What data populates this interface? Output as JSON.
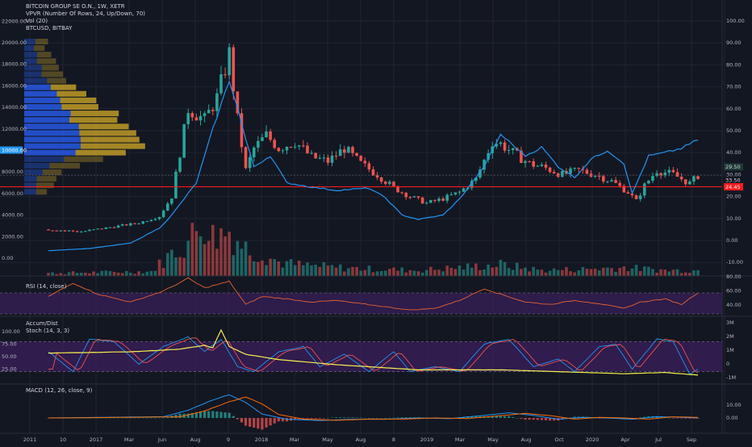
{
  "colors": {
    "background": "#131722",
    "grid": "#1f2430",
    "up": "#26a69a",
    "down": "#ef5350",
    "btc_line": "#2196f3",
    "hline": "#ff1a1a",
    "vpvr_blue": "#2962ff",
    "vpvr_gold": "#c9a227",
    "rsi_line": "#e8622c",
    "rsi_band": "#3b1f5c",
    "adline": "#f6ef4f",
    "stoch_k": "#2196f3",
    "stoch_d": "#ef5350",
    "macd_line": "#2196f3",
    "signal_line": "#ff6d00"
  },
  "legend": {
    "title": "BITCOIN GROUP SE O.N., 1W, XETR",
    "vpvr": "VPVR (Number Of Rows, 24, Up/Down, 70)",
    "vol": "Vol (20)",
    "btc": "BTCUSD, BITBAY",
    "rsi": "RSI (14, close)",
    "accum": "Accum/Dist",
    "stoch": "Stoch (14, 3, 3)",
    "macd": "MACD (12, 26, close, 9)"
  },
  "price_axis": {
    "left_ticks": [
      "22000.00",
      "20000.00",
      "18000.00",
      "16000.00",
      "14000.00",
      "12000.00",
      "10000.00",
      "8000.00",
      "6000.00",
      "4000.00",
      "2000.00",
      "0.00"
    ],
    "right_ticks": [
      "100.00",
      "90.00",
      "80.00",
      "70.00",
      "60.00",
      "50.00",
      "40.00",
      "30.00",
      "20.00",
      "10.00",
      "0.00",
      "-10.00"
    ],
    "highlight_left": "10000.00",
    "last_price": "29.50",
    "prev_price": "33.50",
    "hline_price": "24.45"
  },
  "rsi_axis": {
    "ticks": [
      "80.00",
      "60.00",
      "40.00"
    ]
  },
  "stoch_axis": {
    "left_ticks": [
      "100.00",
      "75.00",
      "50.00",
      "25.00"
    ],
    "right_ticks": [
      "3M",
      "2M",
      "1M",
      "0",
      "-1M"
    ]
  },
  "macd_axis": {
    "ticks": [
      "10.00",
      "0.00"
    ]
  },
  "time_axis": [
    "2011",
    "10",
    "2017",
    "Mar",
    "Jun",
    "Aug",
    "9",
    "2018",
    "Mar",
    "May",
    "Aug",
    "8",
    "2019",
    "Mar",
    "May",
    "Aug",
    "Oct",
    "2020",
    "Apr",
    "Jul",
    "Sep"
  ],
  "chart_data": {
    "type": "candlestick",
    "title": "BITCOIN GROUP SE O.N., 1W, XETR",
    "price_range": [
      -15,
      105
    ],
    "btc_range": [
      -2000,
      24000
    ],
    "hline": 24.45,
    "price_anchors": [
      [
        0,
        5
      ],
      [
        8,
        4
      ],
      [
        15,
        6
      ],
      [
        22,
        8
      ],
      [
        27,
        11
      ],
      [
        30,
        20
      ],
      [
        34,
        60
      ],
      [
        38,
        55
      ],
      [
        41,
        65
      ],
      [
        44,
        85
      ],
      [
        46,
        55
      ],
      [
        48,
        32
      ],
      [
        50,
        42
      ],
      [
        53,
        48
      ],
      [
        56,
        42
      ],
      [
        60,
        45
      ],
      [
        64,
        38
      ],
      [
        68,
        36
      ],
      [
        72,
        42
      ],
      [
        76,
        35
      ],
      [
        80,
        30
      ],
      [
        84,
        24
      ],
      [
        88,
        20
      ],
      [
        92,
        17
      ],
      [
        96,
        19
      ],
      [
        100,
        22
      ],
      [
        104,
        28
      ],
      [
        108,
        45
      ],
      [
        110,
        44
      ],
      [
        113,
        40
      ],
      [
        117,
        35
      ],
      [
        121,
        33
      ],
      [
        125,
        30
      ],
      [
        129,
        32
      ],
      [
        133,
        30
      ],
      [
        137,
        27
      ],
      [
        141,
        22
      ],
      [
        143,
        18
      ],
      [
        145,
        25
      ],
      [
        148,
        32
      ],
      [
        152,
        30
      ],
      [
        156,
        26
      ],
      [
        158,
        29.5
      ]
    ],
    "btc_anchors": [
      [
        0,
        700
      ],
      [
        10,
        900
      ],
      [
        20,
        1400
      ],
      [
        27,
        2800
      ],
      [
        30,
        4000
      ],
      [
        36,
        7000
      ],
      [
        40,
        12000
      ],
      [
        44,
        16500
      ],
      [
        46,
        14000
      ],
      [
        48,
        11000
      ],
      [
        50,
        8500
      ],
      [
        54,
        9500
      ],
      [
        58,
        7000
      ],
      [
        64,
        6600
      ],
      [
        70,
        6300
      ],
      [
        78,
        6500
      ],
      [
        82,
        5600
      ],
      [
        86,
        4000
      ],
      [
        90,
        3600
      ],
      [
        96,
        4000
      ],
      [
        100,
        5500
      ],
      [
        106,
        8500
      ],
      [
        110,
        11500
      ],
      [
        113,
        10500
      ],
      [
        116,
        9500
      ],
      [
        120,
        10300
      ],
      [
        124,
        8500
      ],
      [
        128,
        7500
      ],
      [
        132,
        9200
      ],
      [
        136,
        10000
      ],
      [
        140,
        8800
      ],
      [
        142,
        6000
      ],
      [
        146,
        9500
      ],
      [
        150,
        9800
      ],
      [
        154,
        10200
      ],
      [
        158,
        11000
      ]
    ],
    "volume_anchors": [
      [
        0,
        0.05
      ],
      [
        25,
        0.08
      ],
      [
        30,
        0.4
      ],
      [
        34,
        0.6
      ],
      [
        38,
        1.0
      ],
      [
        40,
        0.7
      ],
      [
        44,
        0.8
      ],
      [
        48,
        0.5
      ],
      [
        52,
        0.4
      ],
      [
        56,
        0.25
      ],
      [
        60,
        0.2
      ],
      [
        70,
        0.15
      ],
      [
        80,
        0.12
      ],
      [
        90,
        0.1
      ],
      [
        100,
        0.15
      ],
      [
        110,
        0.2
      ],
      [
        120,
        0.1
      ],
      [
        130,
        0.12
      ],
      [
        140,
        0.15
      ],
      [
        150,
        0.1
      ],
      [
        158,
        0.1
      ]
    ],
    "rsi_anchors": [
      [
        0,
        55
      ],
      [
        6,
        72
      ],
      [
        12,
        58
      ],
      [
        20,
        48
      ],
      [
        28,
        62
      ],
      [
        34,
        78
      ],
      [
        38,
        66
      ],
      [
        44,
        74
      ],
      [
        48,
        45
      ],
      [
        52,
        55
      ],
      [
        58,
        52
      ],
      [
        64,
        48
      ],
      [
        70,
        50
      ],
      [
        76,
        46
      ],
      [
        82,
        42
      ],
      [
        88,
        38
      ],
      [
        94,
        40
      ],
      [
        100,
        50
      ],
      [
        106,
        65
      ],
      [
        110,
        58
      ],
      [
        116,
        48
      ],
      [
        122,
        45
      ],
      [
        128,
        50
      ],
      [
        134,
        46
      ],
      [
        140,
        40
      ],
      [
        144,
        48
      ],
      [
        150,
        52
      ],
      [
        154,
        45
      ],
      [
        158,
        60
      ]
    ],
    "stoch_anchors": [
      [
        0,
        60
      ],
      [
        6,
        20
      ],
      [
        10,
        85
      ],
      [
        16,
        80
      ],
      [
        22,
        35
      ],
      [
        28,
        70
      ],
      [
        34,
        90
      ],
      [
        38,
        60
      ],
      [
        42,
        85
      ],
      [
        46,
        30
      ],
      [
        50,
        20
      ],
      [
        56,
        60
      ],
      [
        62,
        70
      ],
      [
        66,
        30
      ],
      [
        72,
        55
      ],
      [
        78,
        20
      ],
      [
        84,
        60
      ],
      [
        88,
        20
      ],
      [
        94,
        30
      ],
      [
        100,
        20
      ],
      [
        106,
        75
      ],
      [
        112,
        85
      ],
      [
        118,
        30
      ],
      [
        124,
        45
      ],
      [
        128,
        20
      ],
      [
        134,
        70
      ],
      [
        138,
        75
      ],
      [
        142,
        25
      ],
      [
        148,
        85
      ],
      [
        152,
        80
      ],
      [
        156,
        15
      ],
      [
        158,
        25
      ]
    ],
    "ad_anchors": [
      [
        0,
        0.9
      ],
      [
        20,
        1.0
      ],
      [
        32,
        1.2
      ],
      [
        38,
        1.5
      ],
      [
        40,
        1.3
      ],
      [
        42,
        2.7
      ],
      [
        44,
        1.4
      ],
      [
        48,
        0.8
      ],
      [
        56,
        0.4
      ],
      [
        70,
        0.0
      ],
      [
        90,
        -0.4
      ],
      [
        110,
        -0.4
      ],
      [
        120,
        -0.5
      ],
      [
        140,
        -0.7
      ],
      [
        150,
        -0.6
      ],
      [
        158,
        -0.8
      ]
    ],
    "macd_anchors": [
      [
        0,
        0
      ],
      [
        28,
        1
      ],
      [
        34,
        6
      ],
      [
        40,
        14
      ],
      [
        44,
        18
      ],
      [
        48,
        12
      ],
      [
        52,
        3
      ],
      [
        58,
        -1
      ],
      [
        66,
        -2
      ],
      [
        74,
        -1
      ],
      [
        82,
        -1
      ],
      [
        90,
        0
      ],
      [
        98,
        -0.5
      ],
      [
        106,
        2
      ],
      [
        112,
        4
      ],
      [
        118,
        2
      ],
      [
        124,
        -1
      ],
      [
        130,
        0.5
      ],
      [
        136,
        0
      ],
      [
        142,
        -1
      ],
      [
        148,
        1
      ],
      [
        154,
        0.5
      ],
      [
        158,
        0
      ]
    ]
  }
}
